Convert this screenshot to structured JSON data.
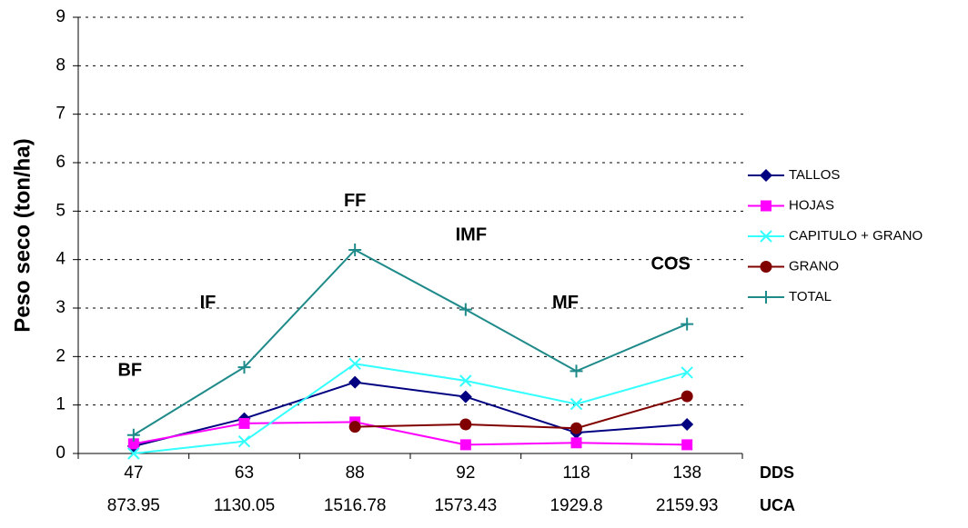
{
  "chart_data": {
    "type": "line",
    "ylabel": "Peso seco (ton/ha)",
    "categories": [
      "47",
      "63",
      "88",
      "92",
      "118",
      "138"
    ],
    "categories2": [
      "873.95",
      "1130.05",
      "1516.78",
      "1573.43",
      "1929.8",
      "2159.93"
    ],
    "category_axis_names": [
      "DDS",
      "UCA"
    ],
    "series": [
      {
        "name": "TALLOS",
        "color": "#000080",
        "marker": "diamond",
        "values": [
          0.15,
          0.72,
          1.47,
          1.17,
          0.43,
          0.6
        ]
      },
      {
        "name": "HOJAS",
        "color": "#ff00ff",
        "marker": "square",
        "values": [
          0.2,
          0.62,
          0.65,
          0.18,
          0.22,
          0.18
        ]
      },
      {
        "name": "CAPITULO + GRANO",
        "color": "#33ffff",
        "marker": "x",
        "values": [
          0,
          0.25,
          1.85,
          1.5,
          1.02,
          1.67
        ]
      },
      {
        "name": "GRANO",
        "color": "#800000",
        "marker": "circle",
        "values": [
          null,
          null,
          0.55,
          0.6,
          0.52,
          1.18
        ]
      },
      {
        "name": "TOTAL",
        "color": "#1f8a8a",
        "marker": "plus",
        "values": [
          0.38,
          1.78,
          4.2,
          2.97,
          1.7,
          2.67
        ]
      }
    ],
    "annotations": [
      "BF",
      "IF",
      "FF",
      "IMF",
      "MF",
      "COS"
    ],
    "ylim": [
      0,
      9
    ],
    "yticks": [
      0,
      1,
      2,
      3,
      4,
      5,
      6,
      7,
      8,
      9
    ],
    "grid": true,
    "legend": "right"
  }
}
